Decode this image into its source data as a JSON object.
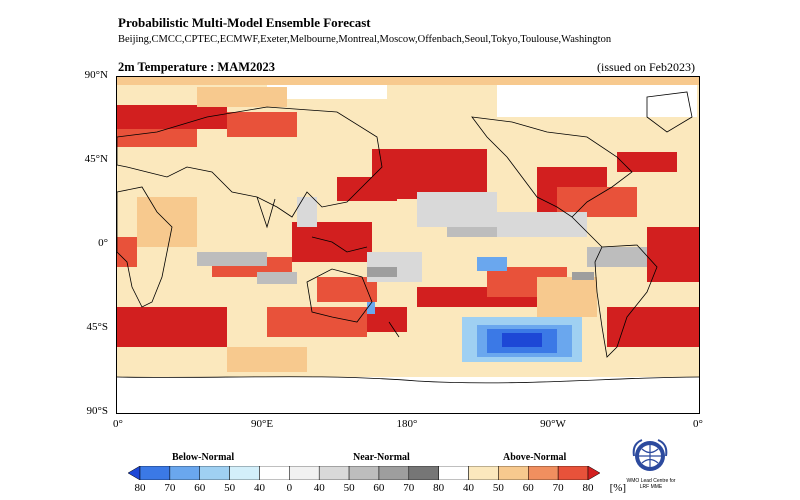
{
  "header": {
    "title": "Probabilistic Multi-Model Ensemble Forecast",
    "centres": "Beijing,CMCC,CPTEC,ECMWF,Exeter,Melbourne,Montreal,Moscow,Offenbach,Seoul,Tokyo,Toulouse,Washington",
    "variable": "2m Temperature : MAM2023",
    "issued": "(issued on Feb2023)"
  },
  "axes": {
    "lat_labels": [
      "90°N",
      "45°N",
      "0°",
      "45°S",
      "90°S"
    ],
    "lon_labels": [
      "0°",
      "90°E",
      "180°",
      "90°W",
      "0°"
    ]
  },
  "legend": {
    "categories": [
      "Below-Normal",
      "Near-Normal",
      "Above-Normal"
    ],
    "tick_labels": [
      "80",
      "70",
      "60",
      "50",
      "40",
      "0",
      "40",
      "50",
      "60",
      "70",
      "80",
      "40",
      "50",
      "60",
      "70",
      "80",
      "[%]"
    ],
    "colors": [
      "#1d47d6",
      "#3b79e6",
      "#6aa7ee",
      "#9fd0f2",
      "#d3effa",
      "#ffffff",
      "#f1f1f1",
      "#d9d9d9",
      "#bdbdbd",
      "#9e9e9e",
      "#767676",
      "#ffffff",
      "#fbe8bd",
      "#f7c98e",
      "#f08f5f",
      "#e8523a",
      "#d21f1f"
    ]
  },
  "logo": {
    "icon": "wmo-emblem-icon",
    "caption": "WMO Lead Centre for LRF MME"
  }
}
